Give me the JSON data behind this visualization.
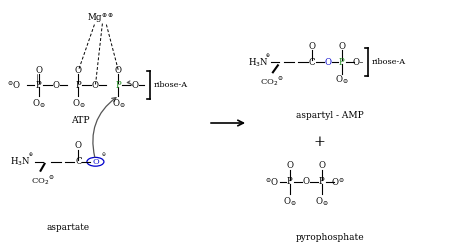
{
  "bg_color": "#ffffff",
  "text_color": "#000000",
  "green_color": "#228B22",
  "blue_color": "#0000cc",
  "gray_color": "#555555",
  "figsize": [
    4.74,
    2.46
  ],
  "dpi": 100,
  "atp_label": "ATP",
  "aspartate_label": "aspartate",
  "aspartyl_amp_label": "aspartyl - AMP",
  "pyrophosphate_label": "pyrophosphate",
  "ribose_label": "ribose-A",
  "plus_sign": "+"
}
